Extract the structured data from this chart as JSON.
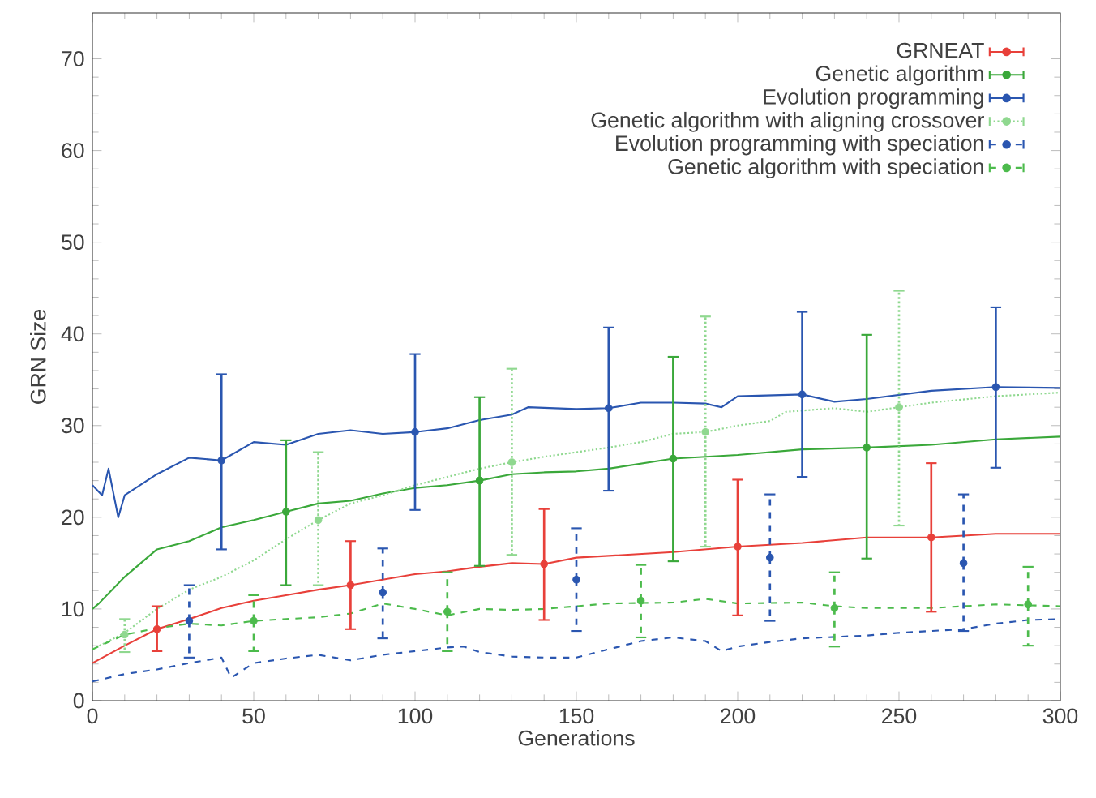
{
  "chart_data": {
    "type": "line",
    "xlabel": "Generations",
    "ylabel": "GRN Size",
    "xlim": [
      0,
      300
    ],
    "ylim": [
      0,
      75
    ],
    "xticks": [
      0,
      50,
      100,
      150,
      200,
      250,
      300
    ],
    "yticks": [
      0,
      10,
      20,
      30,
      40,
      50,
      60,
      70
    ],
    "legend": "top right",
    "series": [
      {
        "name": "GRNEAT",
        "color": "#e8403a",
        "line_style": "solid",
        "x": [
          0,
          10,
          20,
          30,
          40,
          50,
          60,
          70,
          80,
          90,
          100,
          110,
          120,
          130,
          140,
          150,
          160,
          180,
          200,
          220,
          240,
          260,
          280,
          300
        ],
        "values": [
          4.1,
          6,
          7.8,
          8.9,
          10.1,
          10.9,
          11.5,
          12.1,
          12.6,
          13.2,
          13.8,
          14.1,
          14.6,
          15,
          14.9,
          15.6,
          15.8,
          16.2,
          16.8,
          17.2,
          17.8,
          17.8,
          18.2,
          18.2
        ]
      },
      {
        "name": "Genetic algorithm",
        "color": "#3aa83a",
        "line_style": "solid",
        "x": [
          0,
          2,
          10,
          20,
          30,
          40,
          50,
          60,
          70,
          80,
          90,
          100,
          110,
          120,
          130,
          140,
          150,
          160,
          180,
          200,
          220,
          240,
          260,
          280,
          300
        ],
        "values": [
          10,
          10.6,
          13.5,
          16.5,
          17.4,
          18.9,
          19.7,
          20.6,
          21.5,
          21.8,
          22.6,
          23.2,
          23.5,
          24,
          24.7,
          24.9,
          25,
          25.3,
          26.4,
          26.8,
          27.4,
          27.6,
          27.9,
          28.5,
          28.8
        ]
      },
      {
        "name": "Evolution programming",
        "color": "#2a56b0",
        "line_style": "solid",
        "x": [
          0,
          3,
          5,
          8,
          10,
          20,
          30,
          40,
          50,
          60,
          70,
          80,
          90,
          100,
          110,
          120,
          130,
          135,
          150,
          160,
          170,
          180,
          190,
          195,
          200,
          220,
          230,
          240,
          260,
          280,
          300
        ],
        "values": [
          23.5,
          22.4,
          25.3,
          20,
          22.4,
          24.7,
          26.5,
          26.2,
          28.2,
          27.9,
          29.1,
          29.5,
          29.1,
          29.3,
          29.7,
          30.6,
          31.2,
          32,
          31.8,
          31.9,
          32.5,
          32.5,
          32.4,
          32,
          33.2,
          33.4,
          32.6,
          32.9,
          33.8,
          34.2,
          34.1
        ]
      },
      {
        "name": "Genetic algorithm with aligning crossover",
        "color": "#8fd88f",
        "line_style": "dotted",
        "x": [
          0,
          10,
          20,
          30,
          40,
          50,
          60,
          70,
          80,
          90,
          100,
          110,
          120,
          130,
          140,
          150,
          160,
          170,
          180,
          190,
          200,
          210,
          215,
          230,
          240,
          250,
          260,
          280,
          300
        ],
        "values": [
          5.6,
          7.4,
          10,
          12.1,
          13.5,
          15.3,
          17.6,
          19.7,
          21.5,
          22.4,
          23.5,
          24.4,
          25.3,
          26,
          26.6,
          27.1,
          27.6,
          28.2,
          29.1,
          29.3,
          30,
          30.5,
          31.5,
          31.9,
          31.5,
          32,
          32.5,
          33.2,
          33.6
        ]
      },
      {
        "name": "Evolution programming with speciation",
        "color": "#2a56b0",
        "line_style": "dashed",
        "x": [
          0,
          10,
          20,
          30,
          40,
          43,
          50,
          60,
          70,
          80,
          90,
          100,
          110,
          115,
          120,
          130,
          140,
          150,
          160,
          170,
          180,
          190,
          195,
          200,
          210,
          220,
          240,
          250,
          260,
          270,
          280,
          290,
          300
        ],
        "values": [
          2.1,
          2.9,
          3.4,
          4.1,
          4.7,
          2.5,
          4.1,
          4.6,
          5,
          4.4,
          5,
          5.4,
          5.8,
          5.9,
          5.3,
          4.8,
          4.7,
          4.7,
          5.6,
          6.5,
          6.9,
          6.5,
          5.4,
          5.9,
          6.4,
          6.8,
          7.1,
          7.4,
          7.6,
          7.8,
          8.4,
          8.8,
          8.9
        ]
      },
      {
        "name": "Genetic algorithm with speciation",
        "color": "#4cbb4c",
        "line_style": "dashed",
        "x": [
          0,
          10,
          20,
          30,
          40,
          50,
          60,
          70,
          80,
          90,
          100,
          110,
          120,
          130,
          140,
          150,
          160,
          180,
          190,
          200,
          220,
          230,
          240,
          260,
          280,
          300
        ],
        "values": [
          5.6,
          7.2,
          7.9,
          8.4,
          8.2,
          8.7,
          8.9,
          9.1,
          9.5,
          10.6,
          10,
          9.3,
          10,
          9.9,
          10,
          10.3,
          10.6,
          10.7,
          11.1,
          10.6,
          10.7,
          10.3,
          10.1,
          10.1,
          10.5,
          10.3
        ]
      },
      {
        "type": "scatter",
        "color": "#e8403a",
        "line_style": "solid",
        "x": [
          20,
          80,
          140,
          200,
          260
        ],
        "values": [
          7.8,
          12.6,
          14.9,
          16.8,
          17.8
        ],
        "errors": [
          [
            5.4,
            10.3
          ],
          [
            7.8,
            17.4
          ],
          [
            8.8,
            20.9
          ],
          [
            9.3,
            24.1
          ],
          [
            9.7,
            25.9
          ]
        ]
      },
      {
        "type": "scatter",
        "color": "#3aa83a",
        "line_style": "solid",
        "x": [
          60,
          120,
          180,
          240
        ],
        "values": [
          20.6,
          24,
          26.4,
          27.6
        ],
        "errors": [
          [
            12.6,
            28.4
          ],
          [
            14.7,
            33.1
          ],
          [
            15.2,
            37.5
          ],
          [
            15.5,
            39.9
          ]
        ]
      },
      {
        "type": "scatter",
        "color": "#2a56b0",
        "line_style": "solid",
        "x": [
          40,
          100,
          160,
          220,
          280
        ],
        "values": [
          26.2,
          29.3,
          31.9,
          33.4,
          34.2
        ],
        "errors": [
          [
            16.5,
            35.6
          ],
          [
            20.8,
            37.8
          ],
          [
            22.9,
            40.7
          ],
          [
            24.4,
            42.4
          ],
          [
            25.4,
            42.9
          ]
        ]
      },
      {
        "type": "scatter",
        "color": "#8fd88f",
        "line_style": "dotted",
        "x": [
          10,
          70,
          130,
          190,
          250
        ],
        "values": [
          7.2,
          19.7,
          26,
          29.3,
          32
        ],
        "errors": [
          [
            5.3,
            8.9
          ],
          [
            12.6,
            27.1
          ],
          [
            15.9,
            36.2
          ],
          [
            16.8,
            41.9
          ],
          [
            19.1,
            44.7
          ]
        ]
      },
      {
        "type": "scatter",
        "color": "#2a56b0",
        "line_style": "dashed",
        "x": [
          30,
          90,
          150,
          210,
          270
        ],
        "values": [
          8.7,
          11.8,
          13.2,
          15.6,
          15
        ],
        "errors": [
          [
            4.7,
            12.6
          ],
          [
            6.8,
            16.6
          ],
          [
            7.6,
            18.8
          ],
          [
            8.7,
            22.5
          ],
          [
            7.6,
            22.5
          ]
        ]
      },
      {
        "type": "scatter",
        "color": "#4cbb4c",
        "line_style": "dashed",
        "x": [
          50,
          110,
          170,
          230,
          290
        ],
        "values": [
          8.7,
          9.7,
          10.9,
          10.1,
          10.5
        ],
        "errors": [
          [
            5.4,
            11.5
          ],
          [
            5.4,
            14
          ],
          [
            6.9,
            14.8
          ],
          [
            5.9,
            14
          ],
          [
            6,
            14.6
          ]
        ]
      }
    ]
  }
}
